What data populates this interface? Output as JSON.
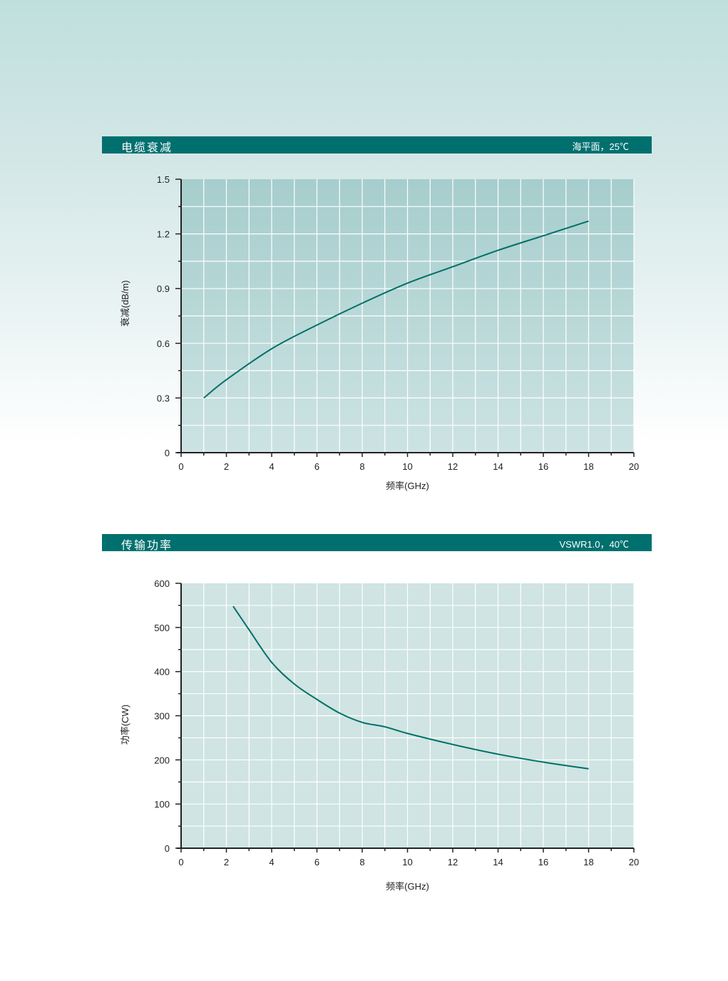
{
  "sections": [
    {
      "title": "电缆衰减",
      "condition": "海平面，25℃"
    },
    {
      "title": "传输功率",
      "condition": "VSWR1.0，40℃"
    }
  ],
  "colors": {
    "header_bar": "#00706f",
    "curve": "#007068",
    "plot_bg_1_top": "#a6cdcd",
    "plot_bg_1_bottom": "#cde3e3",
    "plot_bg_2": "#cfe4e3",
    "grid": "#ffffff"
  },
  "chart_data": [
    {
      "type": "line",
      "xlabel": "频率(GHz)",
      "ylabel": "衰减(dB/m)",
      "xlim": [
        0,
        20
      ],
      "ylim": [
        0,
        1.5
      ],
      "grid": true,
      "xticks": [
        "0",
        "2",
        "4",
        "6",
        "8",
        "10",
        "12",
        "14",
        "16",
        "18",
        "20"
      ],
      "yticks": [
        "0",
        "0.3",
        "0.6",
        "0.9",
        "1.2",
        "1.5"
      ],
      "x": [
        1,
        2,
        4,
        6,
        8,
        10,
        12,
        14,
        16,
        18
      ],
      "y": [
        0.3,
        0.4,
        0.57,
        0.7,
        0.82,
        0.93,
        1.02,
        1.11,
        1.19,
        1.27
      ]
    },
    {
      "type": "line",
      "xlabel": "频率(GHz)",
      "ylabel": "功率(CW)",
      "xlim": [
        0,
        20
      ],
      "ylim": [
        0,
        600
      ],
      "grid": true,
      "xticks": [
        "0",
        "2",
        "4",
        "6",
        "8",
        "10",
        "12",
        "14",
        "16",
        "18",
        "20"
      ],
      "yticks": [
        "0",
        "100",
        "200",
        "300",
        "400",
        "500",
        "600"
      ],
      "x": [
        2.3,
        3,
        4,
        5,
        6,
        7,
        8,
        9,
        10,
        12,
        14,
        16,
        18
      ],
      "y": [
        548,
        495,
        421,
        372,
        337,
        306,
        285,
        275,
        260,
        235,
        213,
        195,
        180
      ]
    }
  ]
}
